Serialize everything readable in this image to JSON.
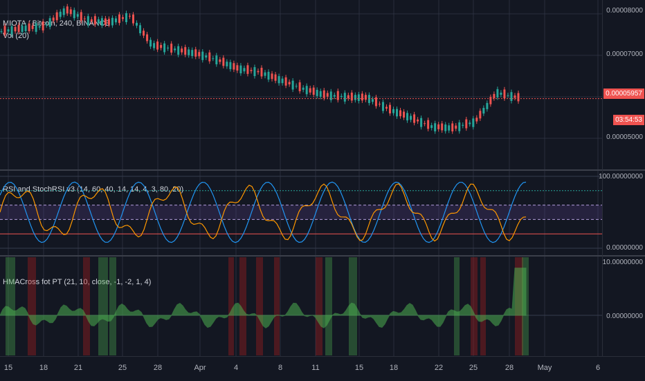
{
  "chart": {
    "symbol_legend": "MIOTA / Bitcoin, 240, BINANCE",
    "vol_legend": "Vol (20)",
    "rsi_legend": "RSI and StochRSI v3 (14, 60, 40, 14, 14, 4, 3, 80, 20)",
    "hma_legend": "HMACross fot PT (21, 10, close, -1, -2, 1, 4)"
  },
  "price_axis": {
    "ticks": [
      "0.00008000",
      "0.00007000",
      "0.00005000"
    ],
    "last_price": "0.00005957",
    "countdown": "03:54:53"
  },
  "rsi_axis": {
    "top": "100.00000000",
    "bottom": "0.00000000"
  },
  "hma_axis": {
    "top": "10.00000000",
    "zero": "0.00000000"
  },
  "time_axis": {
    "labels": [
      "15",
      "18",
      "21",
      "25",
      "28",
      "Apr",
      "4",
      "8",
      "11",
      "15",
      "18",
      "22",
      "25",
      "28",
      "May",
      "6"
    ]
  },
  "colors": {
    "background": "#131722",
    "grid": "#363c4e",
    "up": "#26a69a",
    "down": "#ef5350",
    "rsi": "#ff9800",
    "stoch": "#2196f3",
    "fill_green": "#4caf50",
    "fill_red": "#b71c1c"
  },
  "chart_data": {
    "type": "line",
    "title": "MIOTA / Bitcoin, 240, BINANCE",
    "x": [
      "15",
      "18",
      "21",
      "25",
      "28",
      "Apr",
      "4",
      "8",
      "11",
      "15",
      "18",
      "22",
      "25",
      "28",
      "May",
      "6"
    ],
    "price_series": [
      7.58e-05,
      7.65e-05,
      7.7e-05,
      8.1e-05,
      7.85e-05,
      7.8e-05,
      7.95e-05,
      7.25e-05,
      7.15e-05,
      7.05e-05,
      6.9e-05,
      6.68e-05,
      6.6e-05,
      6.4e-05,
      6.2e-05,
      6.05e-05,
      6e-05,
      5.98e-05,
      5.7e-05,
      5.5e-05,
      5.28e-05,
      5.25e-05,
      5.4e-05,
      6.1e-05,
      5.98e-05
    ],
    "last_price": 5.957e-05
  }
}
